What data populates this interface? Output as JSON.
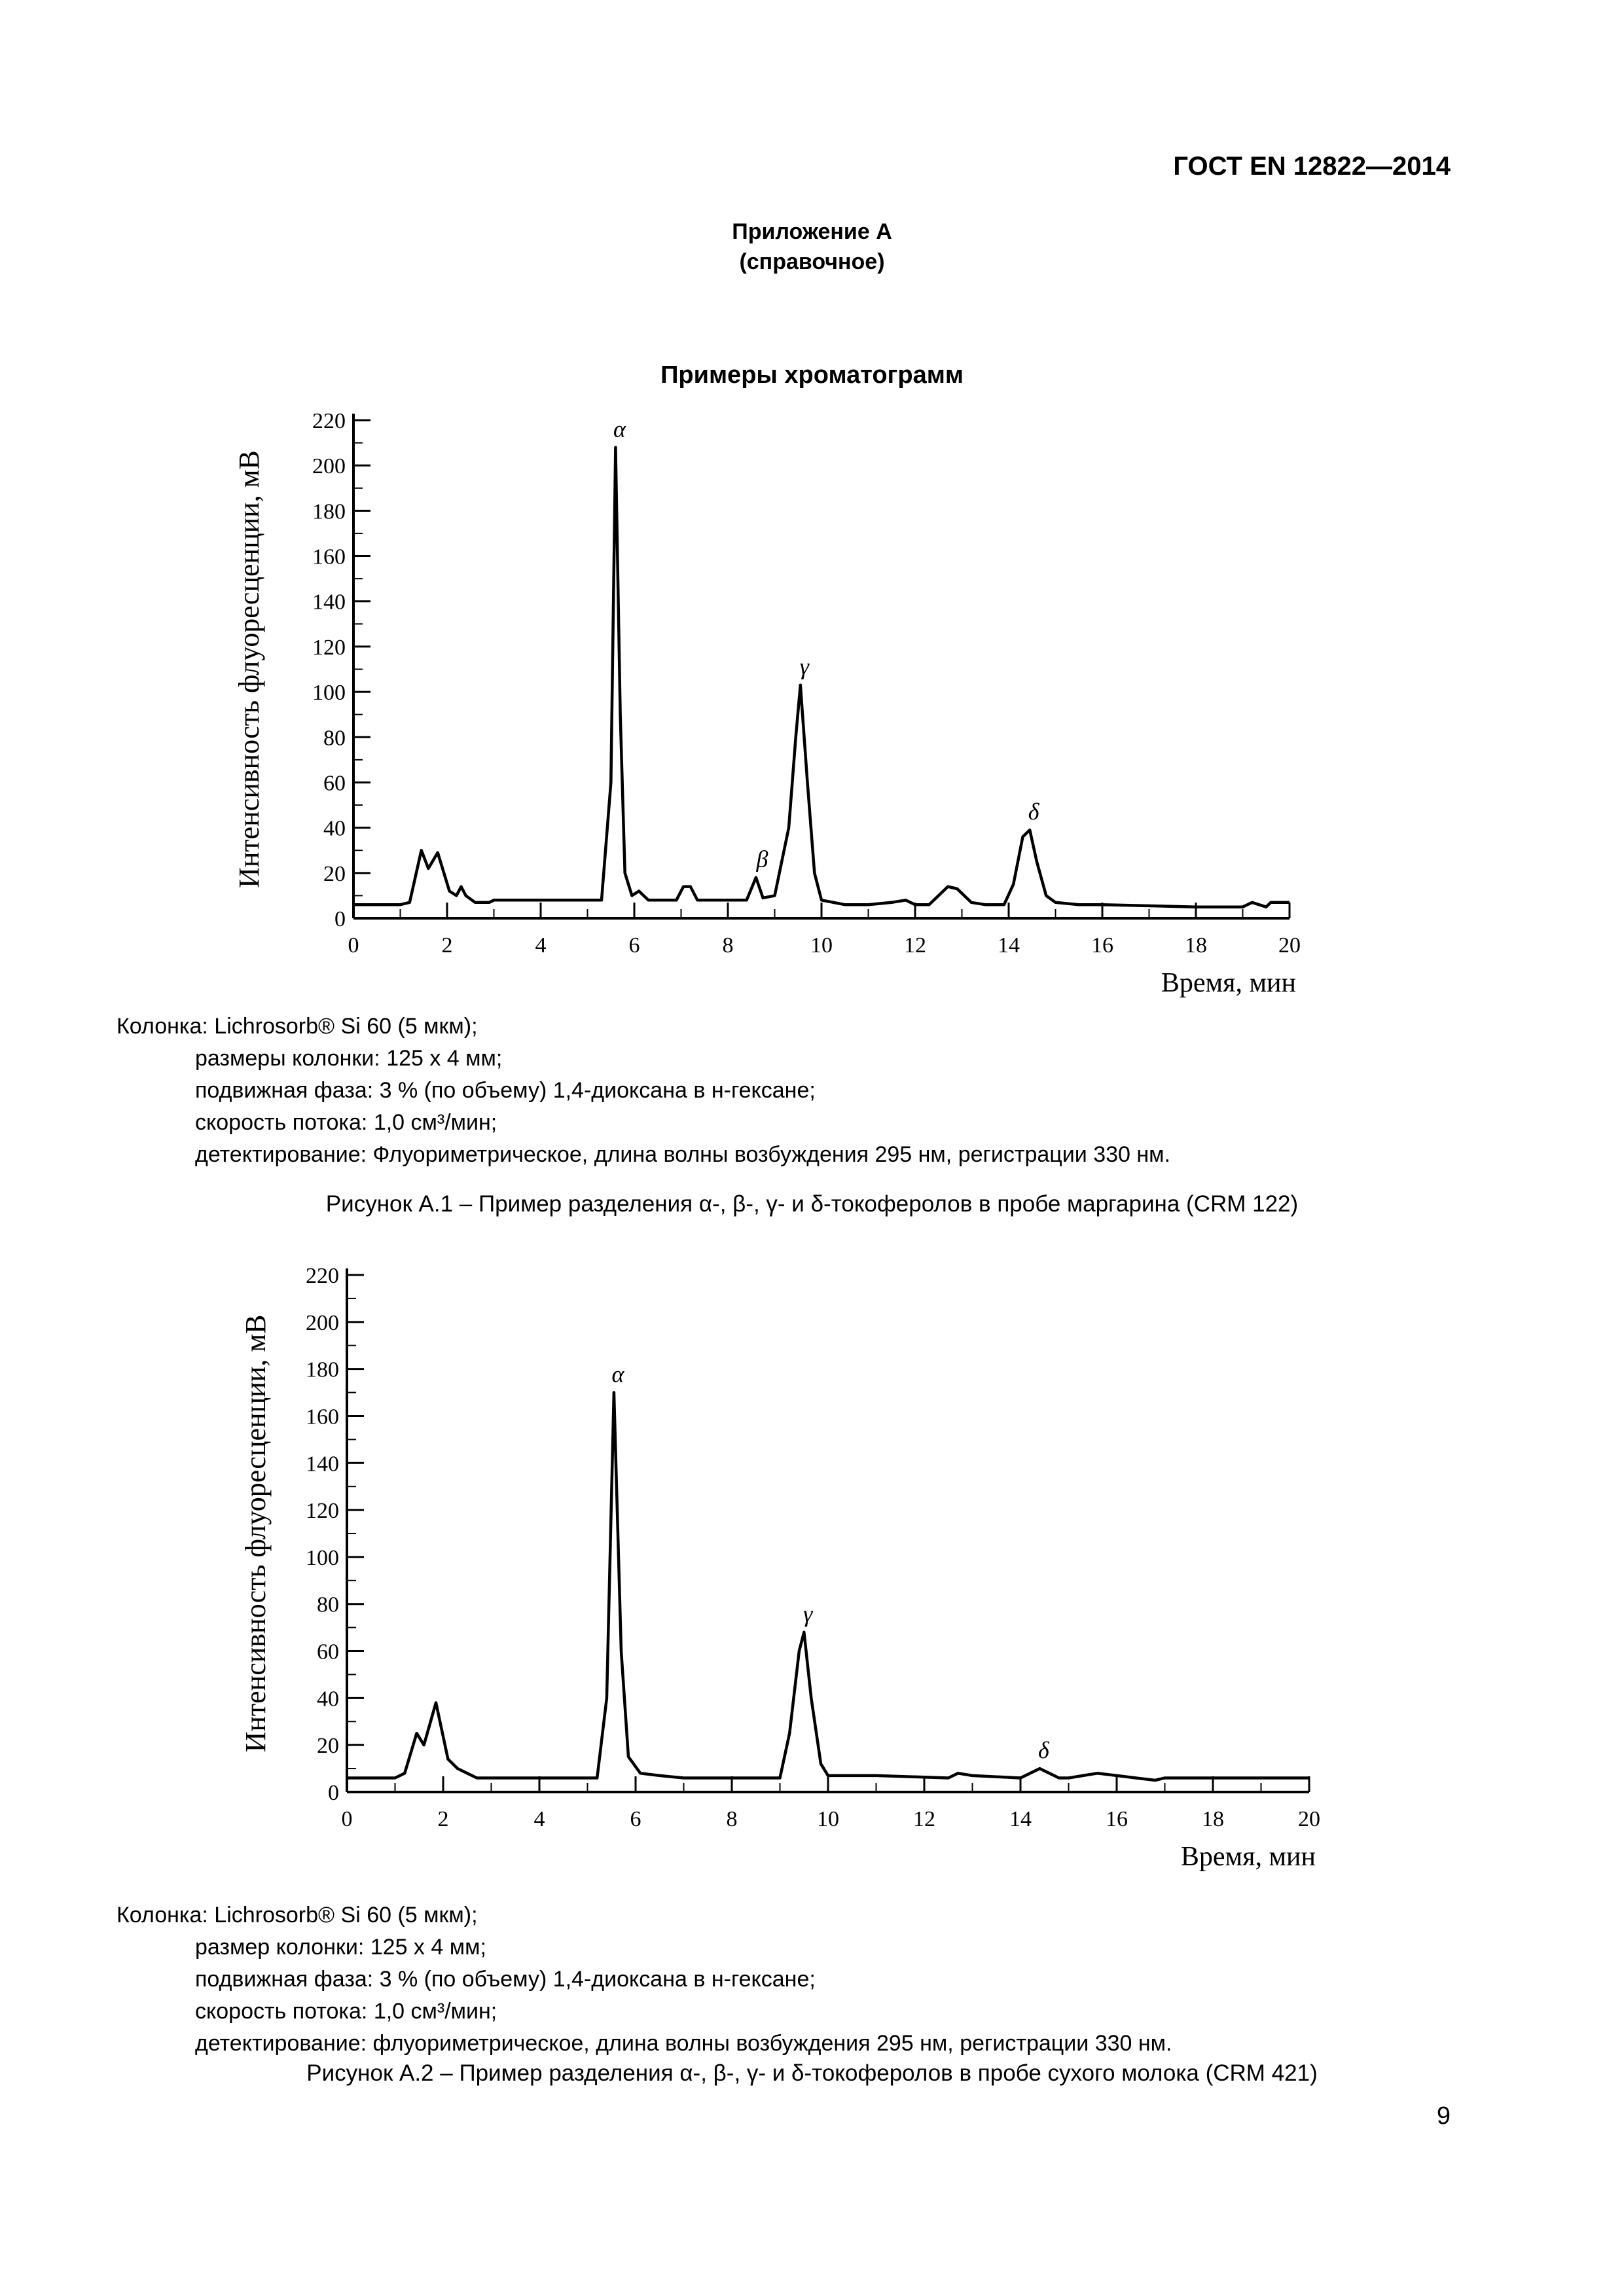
{
  "header": {
    "doc_code": "ГОСТ EN 12822—2014",
    "annex_line1": "Приложение А",
    "annex_line2": "(справочное)",
    "section_title": "Примеры хроматограмм"
  },
  "figure1": {
    "notes": [
      "Колонка: Lichrosorb® Si 60 (5 мкм);",
      "размеры колонки: 125 х 4 мм;",
      "подвижная фаза:    3 % (по объему) 1,4-диоксана в н-гексане;",
      "скорость потока:    1,0 см³/мин;",
      "детектирование:    Флуориметрическое, длина волны возбуждения 295 нм, регистрации 330 нм."
    ],
    "caption": "Рисунок А.1 – Пример разделения α-, β-, γ- и δ-токоферолов в пробе маргарина (CRM 122)"
  },
  "figure2": {
    "notes": [
      "Колонка: Lichrosorb® Si 60 (5 мкм);",
      "размер колонки: 125 х 4 мм;",
      "подвижная фаза: 3 % (по объему) 1,4-диоксана в н-гексане;",
      "скорость потока: 1,0 см³/мин;",
      "детектирование: флуориметрическое, длина волны возбуждения 295 нм, регистрации 330 нм."
    ],
    "caption": "Рисунок А.2 – Пример разделения α-, β-, γ- и δ-токоферолов в пробе сухого молока (CRM 421)"
  },
  "page_number": "9",
  "chart_data": [
    {
      "type": "line",
      "title": "",
      "xlabel": "Время, мин",
      "ylabel": "Интенсивность флуоресценции, мВ",
      "xlim": [
        0,
        20
      ],
      "ylim": [
        0,
        220
      ],
      "x_ticks": [
        "0",
        "2",
        "4",
        "6",
        "8",
        "10",
        "12",
        "14",
        "16",
        "18",
        "20"
      ],
      "y_ticks": [
        "0",
        "20",
        "40",
        "60",
        "80",
        "100",
        "120",
        "140",
        "160",
        "180",
        "200",
        "220"
      ],
      "grid": false,
      "series": [
        {
          "points": [
            [
              0,
              6
            ],
            [
              1,
              6
            ],
            [
              1.2,
              7
            ],
            [
              1.45,
              30
            ],
            [
              1.6,
              22
            ],
            [
              1.8,
              29
            ],
            [
              2.05,
              12
            ],
            [
              2.2,
              10
            ],
            [
              2.3,
              14
            ],
            [
              2.4,
              10
            ],
            [
              2.6,
              7
            ],
            [
              2.9,
              7
            ],
            [
              3,
              8
            ],
            [
              5,
              8
            ],
            [
              5.3,
              8
            ],
            [
              5.5,
              60
            ],
            [
              5.6,
              208
            ],
            [
              5.7,
              90
            ],
            [
              5.8,
              20
            ],
            [
              5.95,
              10
            ],
            [
              6.1,
              12
            ],
            [
              6.3,
              8
            ],
            [
              6.9,
              8
            ],
            [
              7.05,
              14
            ],
            [
              7.2,
              14
            ],
            [
              7.35,
              8
            ],
            [
              8.4,
              8
            ],
            [
              8.6,
              18
            ],
            [
              8.75,
              9
            ],
            [
              9.0,
              10
            ],
            [
              9.3,
              40
            ],
            [
              9.45,
              80
            ],
            [
              9.55,
              103
            ],
            [
              9.7,
              60
            ],
            [
              9.85,
              20
            ],
            [
              10,
              8
            ],
            [
              10.5,
              6
            ],
            [
              11,
              6
            ],
            [
              11.5,
              7
            ],
            [
              11.8,
              8
            ],
            [
              12.0,
              6
            ],
            [
              12.3,
              6
            ],
            [
              12.5,
              10
            ],
            [
              12.7,
              14
            ],
            [
              12.9,
              13
            ],
            [
              13.2,
              7
            ],
            [
              13.5,
              6
            ],
            [
              13.9,
              6
            ],
            [
              14.1,
              15
            ],
            [
              14.3,
              36
            ],
            [
              14.45,
              39
            ],
            [
              14.6,
              25
            ],
            [
              14.8,
              10
            ],
            [
              15,
              7
            ],
            [
              15.5,
              6
            ],
            [
              16,
              6
            ],
            [
              18,
              5
            ],
            [
              19,
              5
            ],
            [
              19.2,
              7
            ],
            [
              19.5,
              5
            ],
            [
              19.6,
              7
            ],
            [
              20,
              7
            ]
          ]
        }
      ],
      "annotations": [
        {
          "text": "α",
          "x": 5.6,
          "y": 208
        },
        {
          "text": "β",
          "x": 8.65,
          "y": 18
        },
        {
          "text": "γ",
          "x": 9.55,
          "y": 103
        },
        {
          "text": "δ",
          "x": 14.45,
          "y": 39
        }
      ]
    },
    {
      "type": "line",
      "title": "",
      "xlabel": "Время, мин",
      "ylabel": "Интенсивность флуоресценции, мВ",
      "xlim": [
        0,
        20
      ],
      "ylim": [
        0,
        220
      ],
      "x_ticks": [
        "0",
        "2",
        "4",
        "6",
        "8",
        "10",
        "12",
        "14",
        "16",
        "18",
        "20"
      ],
      "y_ticks": [
        "0",
        "20",
        "40",
        "60",
        "80",
        "100",
        "120",
        "140",
        "160",
        "180",
        "200",
        "220"
      ],
      "grid": false,
      "series": [
        {
          "points": [
            [
              0,
              6
            ],
            [
              1,
              6
            ],
            [
              1.2,
              8
            ],
            [
              1.45,
              25
            ],
            [
              1.6,
              20
            ],
            [
              1.85,
              38
            ],
            [
              2.1,
              14
            ],
            [
              2.3,
              10
            ],
            [
              2.5,
              8
            ],
            [
              2.7,
              6
            ],
            [
              5,
              6
            ],
            [
              5.2,
              6
            ],
            [
              5.4,
              40
            ],
            [
              5.55,
              170
            ],
            [
              5.7,
              60
            ],
            [
              5.85,
              15
            ],
            [
              6.1,
              8
            ],
            [
              6.5,
              7
            ],
            [
              7,
              6
            ],
            [
              8.5,
              6
            ],
            [
              9,
              6
            ],
            [
              9.2,
              25
            ],
            [
              9.4,
              60
            ],
            [
              9.5,
              68
            ],
            [
              9.65,
              40
            ],
            [
              9.85,
              12
            ],
            [
              10,
              7
            ],
            [
              11,
              7
            ],
            [
              12.5,
              6
            ],
            [
              12.7,
              8
            ],
            [
              13,
              7
            ],
            [
              14,
              6
            ],
            [
              14.2,
              8
            ],
            [
              14.4,
              10
            ],
            [
              14.6,
              8
            ],
            [
              14.8,
              6
            ],
            [
              15,
              6
            ],
            [
              15.3,
              7
            ],
            [
              15.6,
              8
            ],
            [
              16,
              7
            ],
            [
              16.4,
              6
            ],
            [
              16.8,
              5
            ],
            [
              17,
              6
            ],
            [
              18,
              6
            ],
            [
              20,
              6
            ]
          ]
        }
      ],
      "annotations": [
        {
          "text": "α",
          "x": 5.55,
          "y": 170
        },
        {
          "text": "γ",
          "x": 9.5,
          "y": 68
        },
        {
          "text": "δ",
          "x": 14.4,
          "y": 10
        }
      ]
    }
  ]
}
